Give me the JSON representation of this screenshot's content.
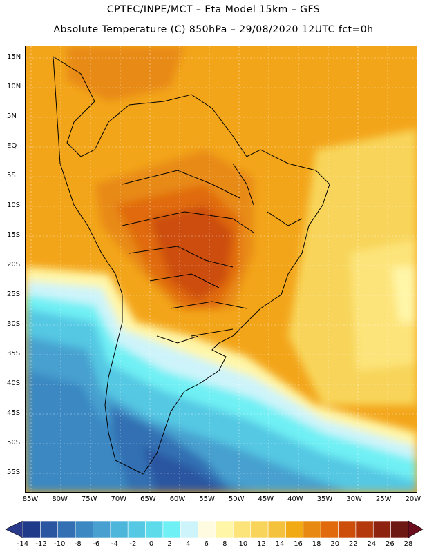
{
  "header": {
    "line1": "CPTEC/INPE/MCT –  Eta Model 15km – GFS",
    "line2": "Absolute Temperature (C) 850hPa – 29/08/2020 12UTC fct=0h"
  },
  "map": {
    "latitude_labels": [
      "15N",
      "10N",
      "5N",
      "EQ",
      "5S",
      "10S",
      "15S",
      "20S",
      "25S",
      "30S",
      "35S",
      "40S",
      "45S",
      "50S",
      "55S"
    ],
    "longitude_labels": [
      "85W",
      "80W",
      "75W",
      "70W",
      "65W",
      "60W",
      "55W",
      "50W",
      "45W",
      "40W",
      "35W",
      "30W",
      "25W",
      "20W"
    ],
    "lat_range": [
      16,
      -59
    ],
    "lon_range": [
      -86,
      -20
    ]
  },
  "colorbar": {
    "labels": [
      "-14",
      "-12",
      "-10",
      "-8",
      "-6",
      "-4",
      "-2",
      "0",
      "2",
      "4",
      "6",
      "8",
      "10",
      "12",
      "14",
      "16",
      "18",
      "20",
      "22",
      "24",
      "26",
      "28"
    ],
    "colors": [
      "#203a8a",
      "#2a55a0",
      "#3370b3",
      "#3b88c2",
      "#47a0cf",
      "#4fb6db",
      "#55c8e3",
      "#5ddbea",
      "#6ff0f4",
      "#cdf4fa",
      "#fffbe0",
      "#fff6a8",
      "#fde47a",
      "#f8d55a",
      "#f4c23c",
      "#f2aa14",
      "#e88a12",
      "#e06a0c",
      "#cc4e0a",
      "#b43a0e",
      "#8e2410",
      "#6e1814"
    ],
    "under_color": "#2a3a8a",
    "over_color": "#6a0e1e"
  }
}
